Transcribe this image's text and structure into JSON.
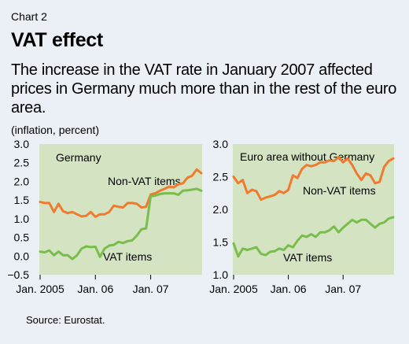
{
  "header": {
    "chart_number": "Chart 2",
    "title": "VAT effect",
    "subtitle": "The increase in the VAT rate in January 2007 affected prices in Germany much more than in the rest of the euro area.",
    "unit": "(inflation, percent)"
  },
  "footer": {
    "source": "Source: Eurostat."
  },
  "colors": {
    "panel_bg": "#d4e3c2",
    "page_bg": "#eaf0f5",
    "non_vat": "#f07b2e",
    "vat": "#79be4c"
  },
  "chart_data": [
    {
      "type": "line",
      "title": "Germany",
      "xlabel": "",
      "ylabel": "",
      "x": [
        "2005-01",
        "2005-02",
        "2005-03",
        "2005-04",
        "2005-05",
        "2005-06",
        "2005-07",
        "2005-08",
        "2005-09",
        "2005-10",
        "2005-11",
        "2005-12",
        "2006-01",
        "2006-02",
        "2006-03",
        "2006-04",
        "2006-05",
        "2006-06",
        "2006-07",
        "2006-08",
        "2006-09",
        "2006-10",
        "2006-11",
        "2006-12",
        "2007-01",
        "2007-02",
        "2007-03",
        "2007-04",
        "2007-05",
        "2007-06",
        "2007-07",
        "2007-08",
        "2007-09",
        "2007-10",
        "2007-11",
        "2007-12"
      ],
      "x_tick_labels": [
        "Jan. 2005",
        "Jan. 06",
        "Jan. 07"
      ],
      "ylim": [
        -0.5,
        3.0
      ],
      "y_ticks": [
        "3.0",
        "2.5",
        "2.0",
        "1.5",
        "1.0",
        "0.5",
        "0.0",
        "−0.5"
      ],
      "grid": false,
      "series": [
        {
          "name": "Non-VAT items",
          "color": "#f07b2e",
          "values": [
            1.45,
            1.42,
            1.42,
            1.18,
            1.4,
            1.2,
            1.15,
            1.18,
            1.12,
            1.06,
            1.08,
            1.18,
            1.05,
            1.12,
            1.12,
            1.18,
            1.35,
            1.32,
            1.3,
            1.42,
            1.42,
            1.4,
            1.3,
            1.32,
            1.65,
            1.68,
            1.75,
            1.8,
            1.86,
            1.84,
            1.92,
            1.95,
            2.1,
            2.15,
            2.32,
            2.22
          ]
        },
        {
          "name": "VAT items",
          "color": "#79be4c",
          "values": [
            0.12,
            0.1,
            0.15,
            0.02,
            0.12,
            0.02,
            0.02,
            -0.08,
            0.02,
            0.2,
            0.26,
            0.24,
            0.25,
            -0.02,
            0.2,
            0.28,
            0.3,
            0.38,
            0.35,
            0.4,
            0.42,
            0.55,
            0.72,
            0.74,
            1.6,
            1.62,
            1.66,
            1.68,
            1.68,
            1.68,
            1.64,
            1.75,
            1.76,
            1.78,
            1.8,
            1.75
          ]
        }
      ]
    },
    {
      "type": "line",
      "title": "Euro area without Germany",
      "xlabel": "",
      "ylabel": "",
      "x": [
        "2005-01",
        "2005-02",
        "2005-03",
        "2005-04",
        "2005-05",
        "2005-06",
        "2005-07",
        "2005-08",
        "2005-09",
        "2005-10",
        "2005-11",
        "2005-12",
        "2006-01",
        "2006-02",
        "2006-03",
        "2006-04",
        "2006-05",
        "2006-06",
        "2006-07",
        "2006-08",
        "2006-09",
        "2006-10",
        "2006-11",
        "2006-12",
        "2007-01",
        "2007-02",
        "2007-03",
        "2007-04",
        "2007-05",
        "2007-06",
        "2007-07",
        "2007-08",
        "2007-09",
        "2007-10",
        "2007-11",
        "2007-12"
      ],
      "x_tick_labels": [
        "Jan. 2005",
        "Jan. 06",
        "Jan. 07"
      ],
      "ylim": [
        1.0,
        3.0
      ],
      "y_ticks": [
        "3.0",
        "2.5",
        "2.0",
        "1.5",
        "1.0"
      ],
      "grid": false,
      "series": [
        {
          "name": "Non-VAT items",
          "color": "#f07b2e",
          "values": [
            2.5,
            2.4,
            2.45,
            2.25,
            2.3,
            2.28,
            2.15,
            2.18,
            2.2,
            2.22,
            2.28,
            2.25,
            2.3,
            2.52,
            2.48,
            2.62,
            2.68,
            2.66,
            2.68,
            2.72,
            2.72,
            2.75,
            2.74,
            2.8,
            2.72,
            2.78,
            2.68,
            2.55,
            2.45,
            2.55,
            2.52,
            2.4,
            2.42,
            2.65,
            2.74,
            2.78
          ]
        },
        {
          "name": "VAT items",
          "color": "#79be4c",
          "values": [
            1.48,
            1.28,
            1.4,
            1.38,
            1.4,
            1.42,
            1.32,
            1.3,
            1.35,
            1.36,
            1.4,
            1.38,
            1.45,
            1.42,
            1.52,
            1.6,
            1.58,
            1.62,
            1.58,
            1.65,
            1.65,
            1.68,
            1.74,
            1.65,
            1.72,
            1.78,
            1.84,
            1.8,
            1.84,
            1.84,
            1.78,
            1.72,
            1.78,
            1.8,
            1.86,
            1.88
          ]
        }
      ]
    }
  ]
}
